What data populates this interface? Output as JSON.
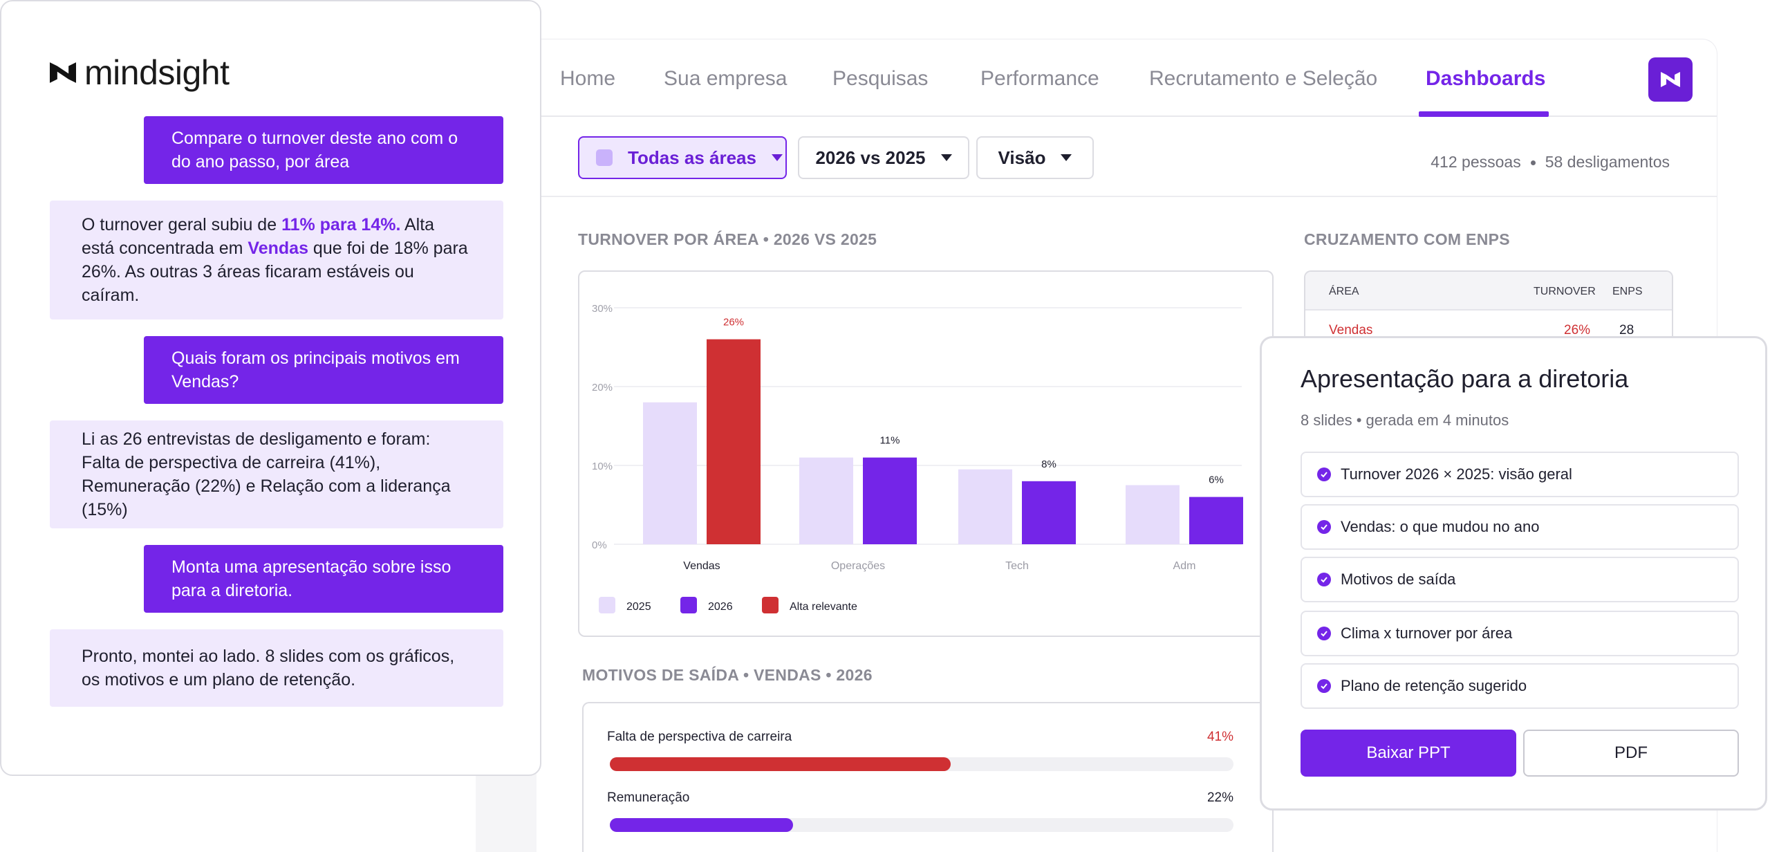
{
  "brand": {
    "name": "mindsight",
    "logo_icon": "mindsight-logo-icon"
  },
  "nav": {
    "items": [
      {
        "label": "Home",
        "active": false
      },
      {
        "label": "Sua empresa",
        "active": false
      },
      {
        "label": "Pesquisas",
        "active": false
      },
      {
        "label": "Performance",
        "active": false
      },
      {
        "label": "Recrutamento e Seleção",
        "active": false
      },
      {
        "label": "Dashboards",
        "active": true
      }
    ],
    "avatar_icon": "mindsight-logo-icon"
  },
  "filters": {
    "area": "Todas as áreas",
    "period": "2026 vs 2025",
    "view": "Visão"
  },
  "stats": {
    "people": "412 pessoas",
    "exits": "58 desligamentos"
  },
  "turnover_section": {
    "title": "TURNOVER POR ÁREA • 2026 VS 2025"
  },
  "chart_data": {
    "type": "bar",
    "title": "TURNOVER POR ÁREA • 2026 VS 2025",
    "categories": [
      "Vendas",
      "Operações",
      "Tech",
      "Adm"
    ],
    "series": [
      {
        "name": "2025",
        "values": [
          18,
          11,
          9.5,
          7.5
        ],
        "color": "#e6dcfb"
      },
      {
        "name": "2026",
        "values": [
          26,
          11,
          8,
          6
        ],
        "color": "#7425e8"
      }
    ],
    "highlight": {
      "name": "Alta relevante",
      "color": "#cf3033",
      "category": "Vendas",
      "series": "2026"
    },
    "data_labels": [
      "26%",
      "11%",
      "8%",
      "6%"
    ],
    "y_ticks": [
      "0%",
      "10%",
      "20%",
      "30%"
    ],
    "ylim": [
      0,
      30
    ],
    "grid": true,
    "legend": [
      "2025",
      "2026",
      "Alta relevante"
    ],
    "legend_position": "bottom-left"
  },
  "motivos_section": {
    "title": "MOTIVOS DE SAÍDA • VENDAS • 2026",
    "items": [
      {
        "label": "Falta de perspectiva de carreira",
        "value": "41%",
        "fraction": 0.41,
        "color": "#cf3033"
      },
      {
        "label": "Remuneração",
        "value": "22%",
        "fraction": 0.22,
        "color": "#7425e8"
      }
    ]
  },
  "enps_section": {
    "title": "CRUZAMENTO COM ENPS",
    "headers": [
      "ÁREA",
      "TURNOVER",
      "ENPS"
    ],
    "rows": [
      {
        "area": "Vendas",
        "turnover": "26%",
        "enps": "28"
      }
    ]
  },
  "chat": {
    "messages": [
      {
        "role": "user",
        "text": "Compare o turnover deste ano com o do ano passo, por área"
      },
      {
        "role": "bot",
        "parts": [
          "O turnover geral subiu de ",
          "11% para 14%.",
          " Alta está concentrada em ",
          "Vendas",
          " que foi de 18% para 26%. As outras 3 áreas ficaram estáveis ou caíram."
        ]
      },
      {
        "role": "user",
        "text": "Quais foram os principais motivos em Vendas?"
      },
      {
        "role": "bot",
        "text": "Li as 26 entrevistas de desligamento e foram: Falta de perspectiva de carreira (41%), Remuneração (22%) e Relação com a liderança (15%)"
      },
      {
        "role": "user",
        "text": "Monta uma apresentação sobre isso para a diretoria."
      },
      {
        "role": "bot",
        "text": "Pronto, montei ao lado. 8 slides com os gráficos, os motivos e um plano de retenção."
      }
    ]
  },
  "presentation": {
    "title": "Apresentação para a diretoria",
    "subtitle_slides": "8 slides",
    "subtitle_time": "gerada em 4 minutos",
    "items": [
      "Turnover 2026 × 2025: visão geral",
      "Vendas: o que mudou no ano",
      "Motivos de saída",
      "Clima x turnover por área",
      "Plano de retenção sugerido"
    ],
    "download_ppt": "Baixar PPT",
    "download_pdf": "PDF",
    "check_icon": "check-circle-icon"
  }
}
